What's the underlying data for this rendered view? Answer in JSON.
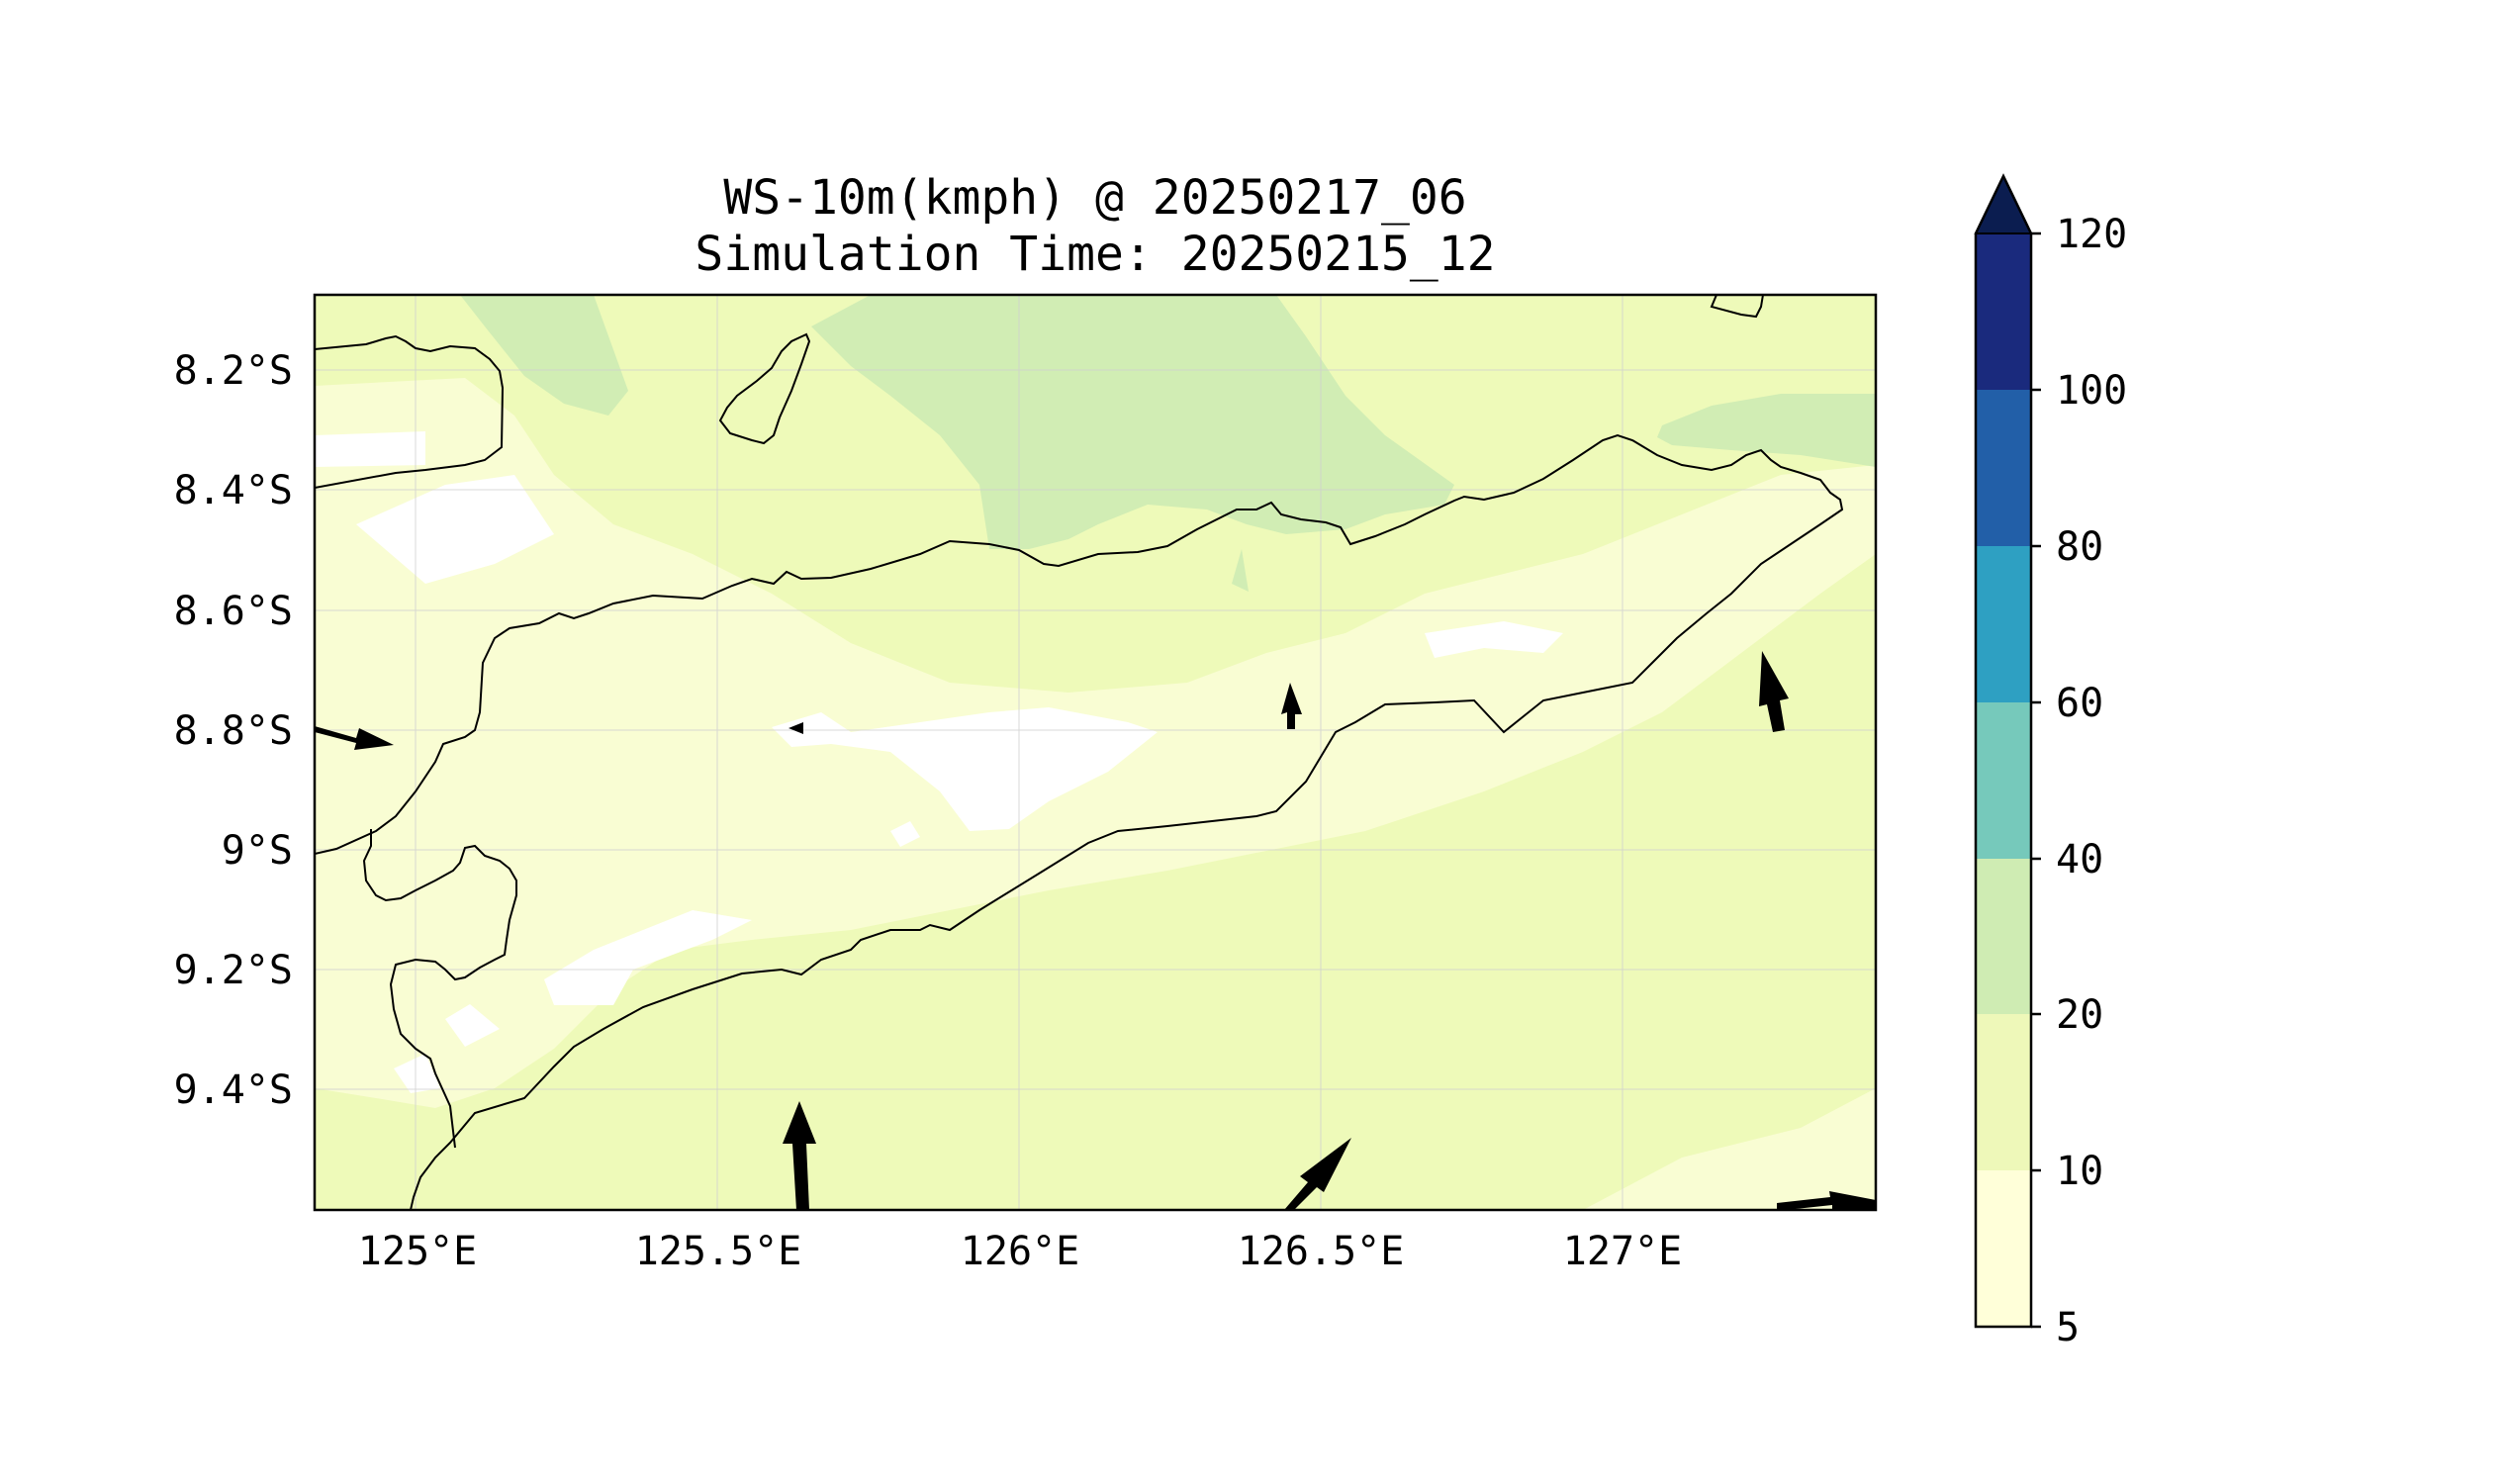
{
  "title": {
    "line1": "WS-10m(kmph) @ 20250217_06",
    "line2": "Simulation Time: 20250215_12"
  },
  "map": {
    "lon_ticks": [
      "125°E",
      "125.5°E",
      "126°E",
      "126.5°E",
      "127°E"
    ],
    "lat_ticks": [
      "8.2°S",
      "8.4°S",
      "8.6°S",
      "8.8°S",
      "9°S",
      "9.2°S",
      "9.4°S"
    ],
    "colors": {
      "lt10": "#f9fdd3",
      "10_20": "#eefab9",
      "20_40": "#d1edb4",
      "land_outline": "#000000",
      "gridline": "#d0d0d0"
    }
  },
  "colorbar": {
    "ticks": [
      "5",
      "10",
      "20",
      "40",
      "60",
      "80",
      "100",
      "120"
    ],
    "colors": [
      "#ffffd9",
      "#eef8b9",
      "#cfecb3",
      "#76c9bb",
      "#2ea0c2",
      "#225fa8",
      "#1a2a7d",
      "#0b1d50"
    ],
    "extend": "max"
  },
  "wind_arrows_icon": "arrow-icon"
}
